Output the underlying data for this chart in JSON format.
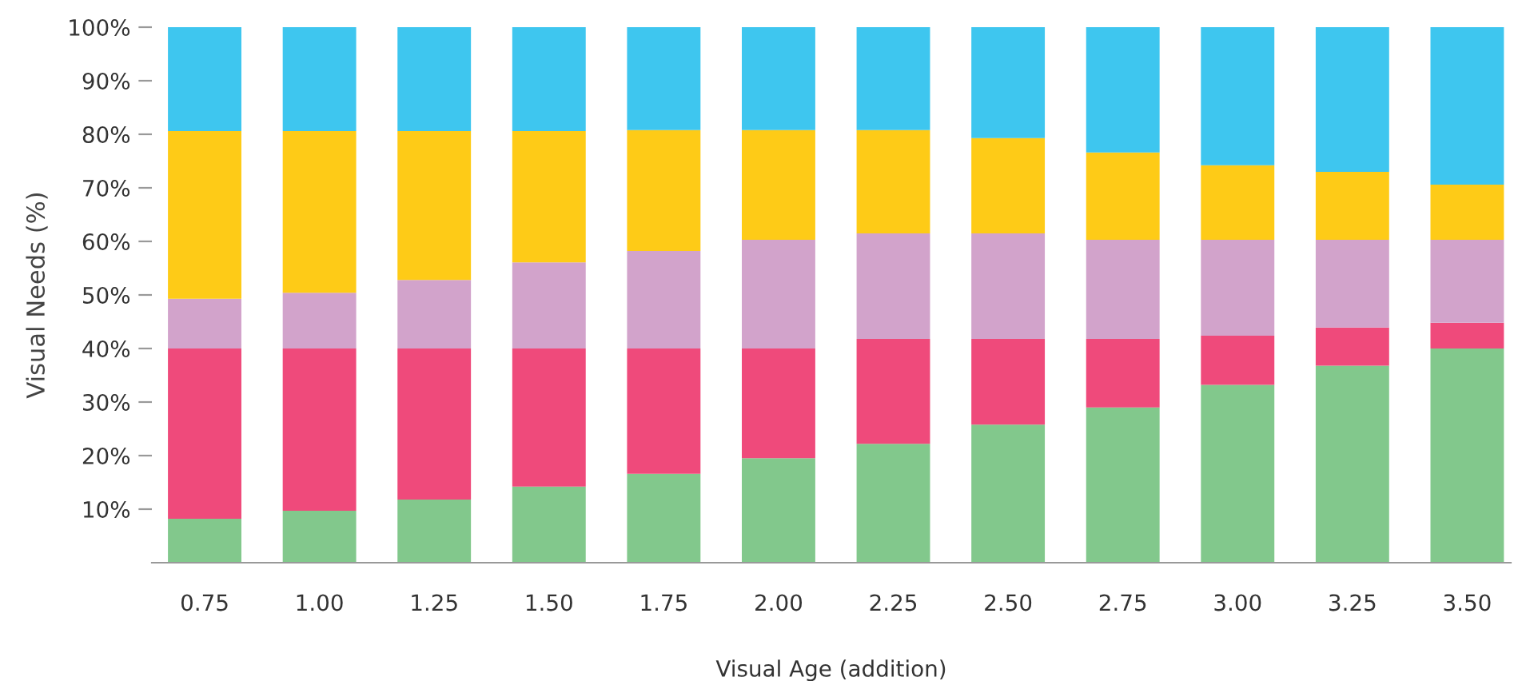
{
  "chart_data": {
    "type": "bar",
    "stacked": true,
    "xlabel": "Visual Age (addition)",
    "ylabel": "Visual Needs (%)",
    "categories": [
      "0.75",
      "1.00",
      "1.25",
      "1.50",
      "1.75",
      "2.00",
      "2.25",
      "2.50",
      "2.75",
      "3.00",
      "3.25",
      "3.50"
    ],
    "series": [
      {
        "color": "#82c88c",
        "values": [
          8.2,
          9.7,
          11.8,
          14.2,
          16.6,
          19.5,
          22.2,
          25.8,
          29.0,
          33.2,
          36.8,
          40.0
        ]
      },
      {
        "color": "#ef4a7b",
        "values": [
          31.8,
          30.3,
          28.2,
          25.8,
          23.4,
          20.5,
          19.6,
          16.0,
          12.8,
          9.2,
          7.1,
          4.8
        ]
      },
      {
        "color": "#d2a3cb",
        "values": [
          9.3,
          10.4,
          12.8,
          16.1,
          18.2,
          20.3,
          19.7,
          19.7,
          18.5,
          17.9,
          16.4,
          15.5
        ]
      },
      {
        "color": "#fecb17",
        "values": [
          31.3,
          30.2,
          27.8,
          24.5,
          22.6,
          20.5,
          19.3,
          17.8,
          16.3,
          13.9,
          12.7,
          10.3
        ]
      },
      {
        "color": "#3ec6ef",
        "values": [
          19.4,
          19.4,
          19.4,
          19.4,
          19.2,
          19.2,
          19.2,
          20.7,
          23.4,
          25.8,
          27.0,
          29.4
        ]
      }
    ],
    "ylim": [
      0,
      100
    ],
    "yticks": [
      {
        "value": 10,
        "label": "10%"
      },
      {
        "value": 20,
        "label": "20%"
      },
      {
        "value": 30,
        "label": "30%"
      },
      {
        "value": 40,
        "label": "40%"
      },
      {
        "value": 50,
        "label": "50%"
      },
      {
        "value": 60,
        "label": "60%"
      },
      {
        "value": 70,
        "label": "70%"
      },
      {
        "value": 80,
        "label": "80%"
      },
      {
        "value": 90,
        "label": "90%"
      },
      {
        "value": 100,
        "label": "100%"
      }
    ],
    "grid": false,
    "legend": false
  }
}
